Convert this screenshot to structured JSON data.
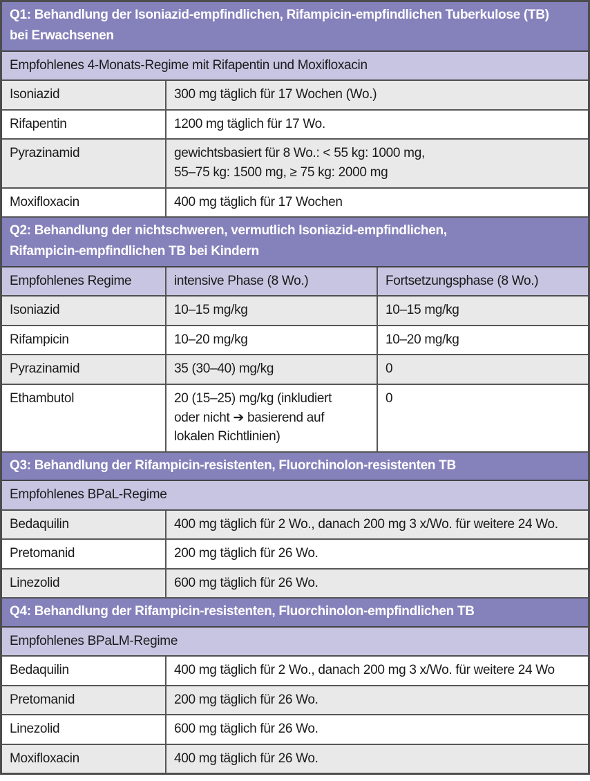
{
  "accent_colors": {
    "section_header_bg": "#8481bb",
    "section_header_text": "#ffffff",
    "subheader_bg": "#c7c5e1",
    "row_gray_bg": "#e9e9e9",
    "row_white_bg": "#ffffff",
    "border": "#4c4c4e",
    "body_text": "#1a1a1a"
  },
  "sections": [
    {
      "id": "Q1",
      "title": "Q1: Behandlung der Isoniazid-empfindlichen, Rifampicin-empfindlichen Tuberkulose (TB)\nbei Erwachsenen",
      "subheader": "Empfohlenes 4-Monats-Regime mit Rifapentin und Moxifloxacin",
      "rows": [
        {
          "drug": "Isoniazid",
          "dose": "300 mg täglich für 17 Wochen (Wo.)"
        },
        {
          "drug": "Rifapentin",
          "dose": "1200 mg täglich für 17 Wo."
        },
        {
          "drug": "Pyrazinamid",
          "dose": "gewichtsbasiert für 8 Wo.: < 55 kg: 1000 mg,\n55–75 kg: 1500 mg, ≥ 75 kg: 2000 mg"
        },
        {
          "drug": "Moxifloxacin",
          "dose": "400 mg täglich für 17 Wochen"
        }
      ]
    },
    {
      "id": "Q2",
      "title": "Q2: Behandlung der nichtschweren, vermutlich Isoniazid-empfindlichen,\nRifampicin-empfindlichen TB bei Kindern",
      "columns": [
        "Empfohlenes Regime",
        "intensive Phase (8 Wo.)",
        "Fortsetzungsphase (8 Wo.)"
      ],
      "rows": [
        {
          "drug": "Isoniazid",
          "intensive": "10–15 mg/kg",
          "continuation": "10–15 mg/kg"
        },
        {
          "drug": "Rifampicin",
          "intensive": "10–20 mg/kg",
          "continuation": "10–20 mg/kg"
        },
        {
          "drug": "Pyrazinamid",
          "intensive": "35 (30–40) mg/kg",
          "continuation": "0"
        },
        {
          "drug": "Ethambutol",
          "intensive": "20 (15–25) mg/kg (inkludiert\noder nicht ➔ basierend auf\nlokalen Richtlinien)",
          "continuation": "0"
        }
      ]
    },
    {
      "id": "Q3",
      "title": "Q3: Behandlung der Rifampicin-resistenten, Fluorchinolon-resistenten TB",
      "subheader": "Empfohlenes BPaL-Regime",
      "rows": [
        {
          "drug": "Bedaquilin",
          "dose": "400 mg täglich für 2 Wo., danach 200 mg 3 x/Wo. für weitere 24 Wo."
        },
        {
          "drug": "Pretomanid",
          "dose": "200 mg täglich für 26 Wo."
        },
        {
          "drug": "Linezolid",
          "dose": "600 mg täglich für 26 Wo."
        }
      ]
    },
    {
      "id": "Q4",
      "title": "Q4: Behandlung der Rifampicin-resistenten, Fluorchinolon-empfindlichen TB",
      "subheader": "Empfohlenes BPaLM-Regime",
      "rows": [
        {
          "drug": "Bedaquilin",
          "dose": "400 mg täglich für 2 Wo., danach 200 mg 3 x/Wo. für weitere 24 Wo"
        },
        {
          "drug": "Pretomanid",
          "dose": "200 mg täglich für 26 Wo."
        },
        {
          "drug": "Linezolid",
          "dose": "600 mg täglich für 26 Wo."
        },
        {
          "drug": "Moxifloxacin",
          "dose": "400 mg täglich für 26 Wo."
        }
      ]
    }
  ]
}
